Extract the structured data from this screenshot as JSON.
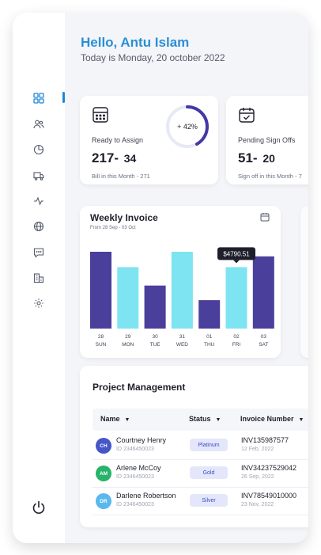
{
  "header": {
    "greeting": "Hello, Antu Islam",
    "date_text": "Today is Monday, 20 october 2022"
  },
  "sidebar": {
    "items": [
      {
        "icon": "grid-icon",
        "active": true
      },
      {
        "icon": "users-icon"
      },
      {
        "icon": "pie-chart-icon"
      },
      {
        "icon": "truck-icon"
      },
      {
        "icon": "activity-icon"
      },
      {
        "icon": "globe-icon"
      },
      {
        "icon": "message-icon"
      },
      {
        "icon": "building-icon"
      },
      {
        "icon": "gear-icon"
      }
    ],
    "power_icon": "power-icon",
    "accent": "#1f86d8"
  },
  "cards": [
    {
      "title": "Ready to Assign",
      "value": "217-",
      "sub": "34",
      "footer": "Bill in this Month - 271",
      "progress_label": "+ 42%",
      "progress": 0.42,
      "icon": "calculator-icon"
    },
    {
      "title": "Pending Sign Offs",
      "value": "51-",
      "sub": "20",
      "footer": "Sign off in this Month - 7",
      "icon": "calendar-check-icon"
    }
  ],
  "weekly_invoice": {
    "title": "Weekly Invoice",
    "subtitle": "From 28 Sep - 03 Oct",
    "tooltip": "$4790.51"
  },
  "chart_data": {
    "type": "bar",
    "title": "Weekly Invoice",
    "subtitle": "From 28 Sep - 03 Oct",
    "categories": [
      "28 SUN",
      "29 MON",
      "30 TUE",
      "31 WED",
      "01 THU",
      "02 FRI",
      "03 SAT"
    ],
    "days": [
      "28",
      "29",
      "30",
      "31",
      "01",
      "02",
      "03"
    ],
    "weekdays": [
      "SUN",
      "MON",
      "TUE",
      "WED",
      "THU",
      "FRI",
      "SAT"
    ],
    "values": [
      100,
      80,
      56,
      100,
      37,
      80,
      94
    ],
    "colors": [
      "#4a3f9b",
      "#7ee4f1",
      "#4a3f9b",
      "#7ee4f1",
      "#4a3f9b",
      "#7ee4f1",
      "#4a3f9b"
    ],
    "highlight_index": 5,
    "highlight_label": "$4790.51",
    "ylim": [
      0,
      100
    ],
    "grid": false,
    "legend": "none"
  },
  "project_management": {
    "title": "Project Management",
    "columns": [
      "Name",
      "Status",
      "Invoice Number"
    ],
    "rows": [
      {
        "initials": "CH",
        "name": "Courtney Henry",
        "id": "ID 2346450023",
        "status": "Platinum",
        "invoice": "INV135987577",
        "date": "12 Feb, 2022",
        "avatar_color": "#4656c9"
      },
      {
        "initials": "AM",
        "name": "Arlene McCoy",
        "id": "ID 2346450023",
        "status": "Gold",
        "invoice": "INV34237529042",
        "date": "26 Sep, 2022",
        "avatar_color": "#27b36a"
      },
      {
        "initials": "DR",
        "name": "Darlene Robertson",
        "id": "ID 2346450023",
        "status": "Silver",
        "invoice": "INV78549010000",
        "date": "23 Nov, 2022",
        "avatar_color": "#5ab8ef"
      }
    ]
  }
}
